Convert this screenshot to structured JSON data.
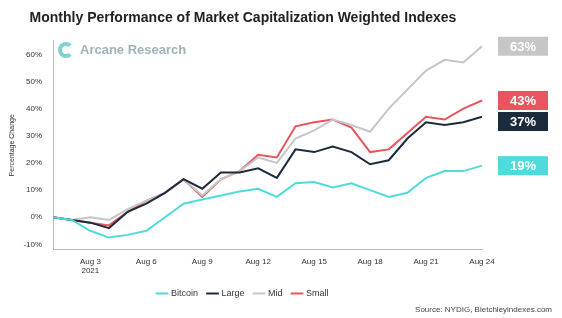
{
  "chart_data": {
    "type": "line",
    "title": "Monthly Performance of Market Capitalization Weighted Indexes",
    "y_label": "Percentage Change",
    "logo": "Arcane Research",
    "source": "Source: NYDIG, Bletchleyindexes.com",
    "categories": [
      null,
      null,
      "Aug 3\n2021",
      null,
      null,
      "Aug 6",
      null,
      null,
      "Aug 9",
      null,
      null,
      "Aug 12",
      null,
      null,
      "Aug 15",
      null,
      null,
      "Aug 18",
      null,
      null,
      "Aug 21",
      null,
      null,
      "Aug 24"
    ],
    "series": [
      {
        "name": "Bitcoin",
        "color": "#4fdbdb",
        "values": [
          0,
          -1,
          -5,
          -7.5,
          -6.5,
          -5,
          0,
          5,
          6.5,
          8,
          9.5,
          10.5,
          7.5,
          12.5,
          13,
          11,
          12.5,
          10,
          7.5,
          9,
          14.5,
          17,
          17,
          19
        ]
      },
      {
        "name": "Large",
        "color": "#1c2b3c",
        "values": [
          0,
          -1,
          -2,
          -4,
          2,
          5,
          9,
          14,
          10.5,
          16.5,
          16.5,
          18,
          14.5,
          25,
          24,
          26,
          24,
          19.5,
          21,
          29,
          35,
          34,
          35,
          37
        ]
      },
      {
        "name": "Mid",
        "color": "#c6c6c6",
        "values": [
          0,
          -1,
          0,
          -1,
          3,
          6,
          9,
          14,
          8,
          14,
          17,
          22,
          20,
          29,
          32,
          36,
          34,
          31.5,
          40,
          47,
          54,
          58,
          57,
          63
        ]
      },
      {
        "name": "Small",
        "color": "#e8555e",
        "values": [
          0,
          -1,
          -2,
          -3,
          2,
          6,
          9,
          14,
          7.5,
          14,
          17,
          23,
          22,
          33.5,
          35,
          36,
          33,
          24,
          25,
          31,
          37,
          36,
          40,
          43
        ]
      }
    ],
    "annotations": [
      {
        "text": "63%",
        "series": "Mid",
        "color": "#c6c6c6"
      },
      {
        "text": "43%",
        "series": "Small",
        "color": "#e8555e"
      },
      {
        "text": "37%",
        "series": "Large",
        "color": "#1c2b3c"
      },
      {
        "text": "19%",
        "series": "Bitcoin",
        "color": "#4fdbdb"
      }
    ],
    "ylim": [
      -12,
      65
    ],
    "yticks": [
      {
        "value": -10,
        "label": "-10%"
      },
      {
        "value": 0,
        "label": "0%"
      },
      {
        "value": 10,
        "label": "10%"
      },
      {
        "value": 20,
        "label": "20%"
      },
      {
        "value": 30,
        "label": "30%"
      },
      {
        "value": 40,
        "label": "40%"
      },
      {
        "value": 50,
        "label": "50%"
      },
      {
        "value": 60,
        "label": "60%"
      }
    ],
    "grid": false,
    "legend": "bottom"
  }
}
